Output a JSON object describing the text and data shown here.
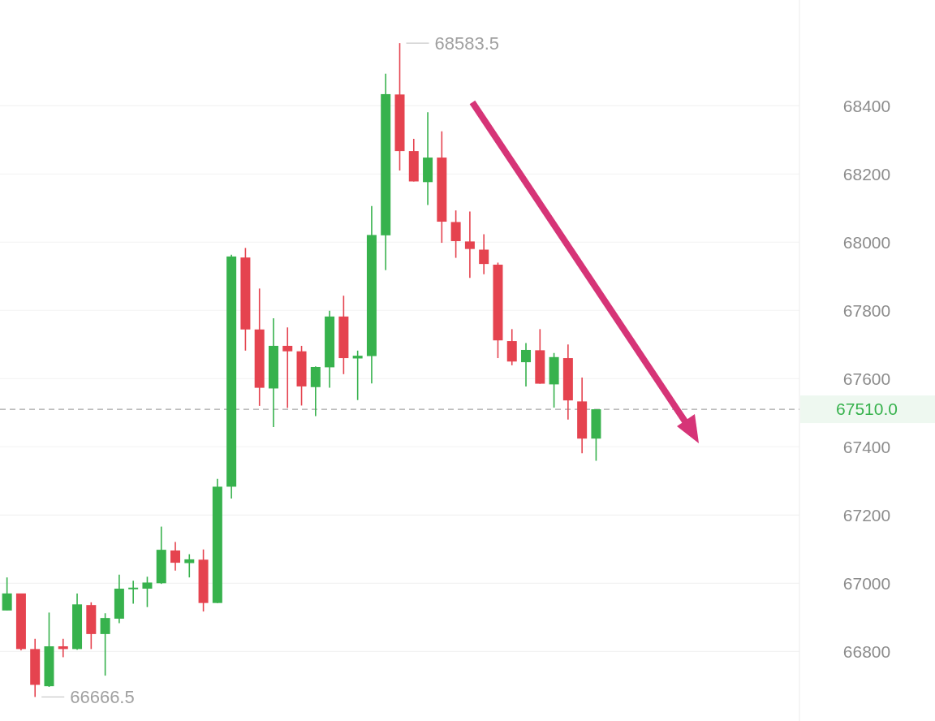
{
  "chart_data": {
    "type": "candlestick",
    "categories": [
      null,
      null,
      null,
      null,
      null,
      null,
      null,
      null,
      null,
      null,
      null,
      null,
      null,
      null,
      null,
      null,
      null,
      null,
      null,
      null,
      null,
      null,
      null,
      null,
      null,
      null,
      null,
      null,
      null,
      null,
      null,
      null,
      null,
      null,
      null,
      null,
      null,
      null,
      null,
      null,
      null,
      null,
      null,
      null,
      null,
      null,
      null,
      null,
      null,
      null,
      null,
      null,
      null,
      null,
      null,
      null,
      null
    ],
    "ohlc": [
      [
        66920,
        67017,
        66920,
        66970
      ],
      [
        66970,
        66970,
        66803,
        66807
      ],
      [
        66807,
        66837,
        66666.5,
        66702
      ],
      [
        66698,
        66914,
        66696,
        66815
      ],
      [
        66815,
        66837,
        66783,
        66807
      ],
      [
        66807,
        66970,
        66805,
        66938
      ],
      [
        66936,
        66944,
        66807,
        66851
      ],
      [
        66851,
        66912,
        66729,
        66898
      ],
      [
        66896,
        67025,
        66883,
        66984
      ],
      [
        66985,
        67007,
        66940,
        66987
      ],
      [
        66984,
        67019,
        66930,
        67002
      ],
      [
        67000,
        67166,
        66998,
        67098
      ],
      [
        67096,
        67121,
        67037,
        67060
      ],
      [
        67059,
        67085,
        67017,
        67070
      ],
      [
        67069,
        67099,
        66917,
        66942
      ],
      [
        66942,
        67306,
        66942,
        67283
      ],
      [
        67283,
        67963,
        67248,
        67958
      ],
      [
        67955,
        67983,
        67682,
        67744
      ],
      [
        67744,
        67864,
        67520,
        67573
      ],
      [
        67571,
        67777,
        67458,
        67696
      ],
      [
        67696,
        67750,
        67514,
        67680
      ],
      [
        67680,
        67696,
        67521,
        67577
      ],
      [
        67575,
        67636,
        67490,
        67634
      ],
      [
        67633,
        67799,
        67573,
        67782
      ],
      [
        67782,
        67843,
        67613,
        67660
      ],
      [
        67659,
        67682,
        67537,
        67667
      ],
      [
        67666,
        68106,
        67586,
        68021
      ],
      [
        68020,
        68494,
        67918,
        68434
      ],
      [
        68433,
        68583.5,
        68210,
        68267
      ],
      [
        68267,
        68303,
        68178,
        68178
      ],
      [
        68176,
        68381,
        68109,
        68248
      ],
      [
        68248,
        68325,
        67998,
        68060
      ],
      [
        68059,
        68093,
        67954,
        68003
      ],
      [
        68002,
        68090,
        67895,
        67980
      ],
      [
        67978,
        68023,
        67906,
        67936
      ],
      [
        67934,
        67940,
        67660,
        67712
      ],
      [
        67710,
        67745,
        67639,
        67650
      ],
      [
        67648,
        67704,
        67577,
        67684
      ],
      [
        67683,
        67745,
        67585,
        67585
      ],
      [
        67583,
        67675,
        67515,
        67663
      ],
      [
        67660,
        67700,
        67480,
        67536
      ],
      [
        67533,
        67603,
        67381,
        67424
      ],
      [
        67424,
        67510,
        67359,
        67510
      ],
      null,
      null,
      null,
      null,
      null,
      null,
      null,
      null,
      null,
      null,
      null,
      null,
      null,
      null
    ],
    "colors": [
      "#37b24d",
      "#e5434f",
      "#e5434f",
      "#37b24d",
      "#e5434f",
      "#37b24d",
      "#e5434f",
      "#37b24d",
      "#37b24d",
      "#37b24d",
      "#37b24d",
      "#37b24d",
      "#e5434f",
      "#37b24d",
      "#e5434f",
      "#37b24d",
      "#37b24d",
      "#e5434f",
      "#e5434f",
      "#37b24d",
      "#e5434f",
      "#e5434f",
      "#37b24d",
      "#37b24d",
      "#e5434f",
      "#37b24d",
      "#37b24d",
      "#37b24d",
      "#e5434f",
      "#e5434f",
      "#37b24d",
      "#e5434f",
      "#e5434f",
      "#e5434f",
      "#e5434f",
      "#e5434f",
      "#e5434f",
      "#37b24d",
      "#e5434f",
      "#37b24d",
      "#e5434f",
      "#e5434f",
      "#37b24d",
      null,
      null,
      null,
      null,
      null,
      null,
      null,
      null,
      null,
      null,
      null,
      null,
      null,
      null
    ],
    "ylim": [
      66596,
      68710
    ],
    "yticks": [
      66800,
      67000,
      67200,
      67400,
      67600,
      67800,
      68000,
      68200,
      68400
    ],
    "grid": "y",
    "tick_labels": "y",
    "ref_lines": [
      {
        "axis": "y",
        "value": 67510,
        "label": "67510.0",
        "color": "#a8a8a8",
        "line_style": "dashed"
      }
    ],
    "annotations": [
      "68583.5",
      "66666.5"
    ]
  }
}
